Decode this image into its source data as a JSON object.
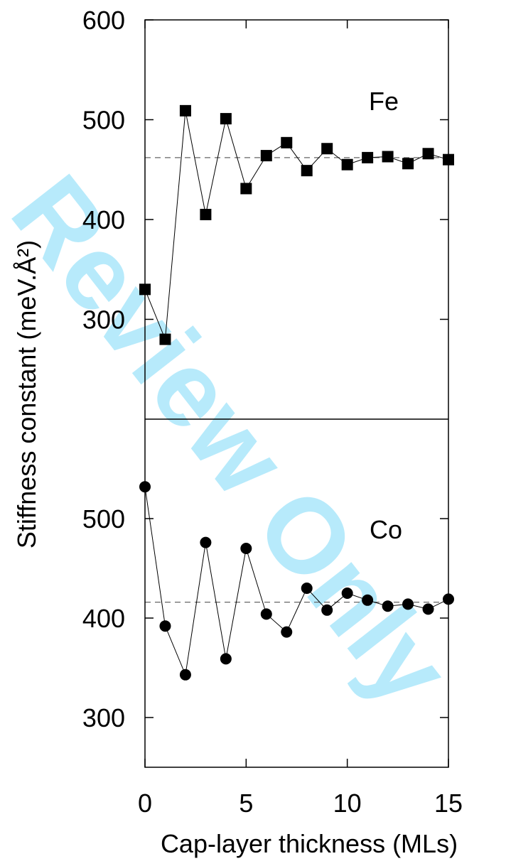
{
  "watermark": "Review Only",
  "chart_data": {
    "type": "scatter",
    "xlabel": "Cap-layer thickness (MLs)",
    "ylabel": "Stiffness constant (meV.Å²)",
    "x_ticks": [
      0,
      5,
      10,
      15
    ],
    "xlim": [
      0,
      15
    ],
    "panels": [
      {
        "name": "Fe",
        "ylim": [
          200,
          600
        ],
        "y_ticks": [
          300,
          400,
          500,
          600
        ],
        "reference_value": 462,
        "series": [
          {
            "name": "Fe",
            "marker": "square",
            "x": [
              0,
              1,
              2,
              3,
              4,
              5,
              6,
              7,
              8,
              9,
              10,
              11,
              12,
              13,
              14,
              15
            ],
            "y": [
              330,
              280,
              509,
              405,
              501,
              431,
              464,
              477,
              449,
              471,
              455,
              462,
              463,
              456,
              466,
              460
            ]
          }
        ]
      },
      {
        "name": "Co",
        "ylim": [
          250,
          600
        ],
        "y_ticks": [
          300,
          400,
          500
        ],
        "reference_value": 416,
        "series": [
          {
            "name": "Co",
            "marker": "circle",
            "x": [
              0,
              1,
              2,
              3,
              4,
              5,
              6,
              7,
              8,
              9,
              10,
              11,
              12,
              13,
              14,
              15
            ],
            "y": [
              532,
              392,
              343,
              476,
              359,
              470,
              404,
              386,
              430,
              408,
              425,
              418,
              412,
              414,
              409,
              419
            ]
          }
        ]
      }
    ]
  }
}
